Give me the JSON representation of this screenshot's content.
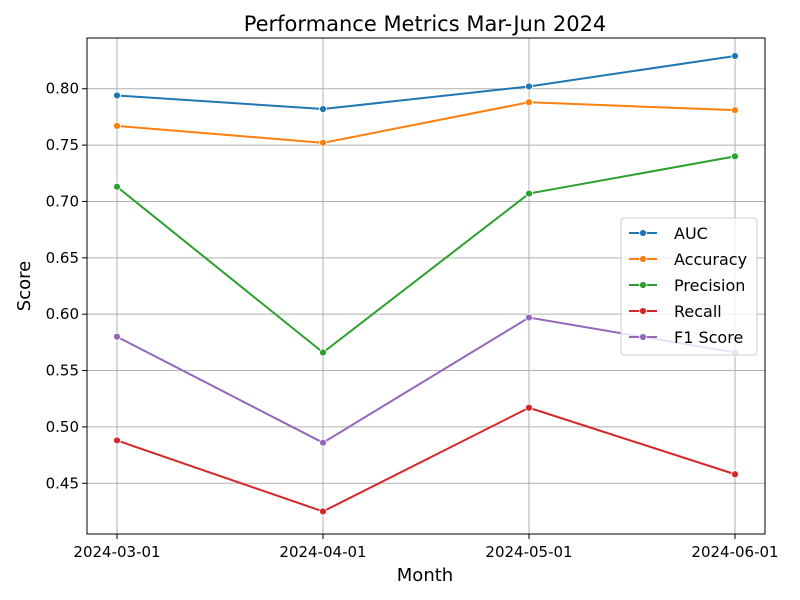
{
  "chart_data": {
    "type": "line",
    "title": "Performance Metrics Mar-Jun 2024",
    "xlabel": "Month",
    "ylabel": "Score",
    "categories": [
      "2024-03-01",
      "2024-04-01",
      "2024-05-01",
      "2024-06-01"
    ],
    "ylim": [
      0.405,
      0.845
    ],
    "yticks": [
      0.45,
      0.5,
      0.55,
      0.6,
      0.65,
      0.7,
      0.75,
      0.8
    ],
    "ytick_labels": [
      "0.45",
      "0.50",
      "0.55",
      "0.60",
      "0.65",
      "0.70",
      "0.75",
      "0.80"
    ],
    "grid": true,
    "legend_position": "center-right",
    "series": [
      {
        "name": "AUC",
        "color": "#1f77b4",
        "values": [
          0.794,
          0.782,
          0.802,
          0.829
        ]
      },
      {
        "name": "Accuracy",
        "color": "#ff7f0e",
        "values": [
          0.767,
          0.752,
          0.788,
          0.781
        ]
      },
      {
        "name": "Precision",
        "color": "#2ca02c",
        "values": [
          0.713,
          0.566,
          0.707,
          0.74
        ]
      },
      {
        "name": "Recall",
        "color": "#d62728",
        "values": [
          0.488,
          0.425,
          0.517,
          0.458
        ]
      },
      {
        "name": "F1 Score",
        "color": "#9467bd",
        "values": [
          0.58,
          0.486,
          0.597,
          0.566
        ]
      }
    ]
  }
}
